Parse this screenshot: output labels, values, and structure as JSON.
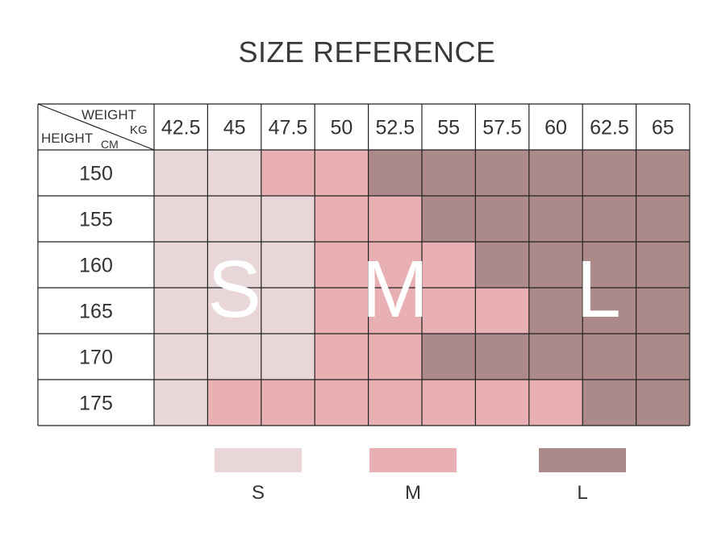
{
  "title": "SIZE REFERENCE",
  "colors": {
    "S": "#e8d6d8",
    "M": "#e8b0b2",
    "L": "#ad8a8a",
    "border": "#222222"
  },
  "chart_data": {
    "type": "table",
    "title": "SIZE REFERENCE",
    "corner": {
      "weight_label": "WEIGHT",
      "weight_unit": "KG",
      "height_label": "HEIGHT",
      "height_unit": "CM"
    },
    "weights": [
      "42.5",
      "45",
      "47.5",
      "50",
      "52.5",
      "55",
      "57.5",
      "60",
      "62.5",
      "65"
    ],
    "heights": [
      "150",
      "155",
      "160",
      "165",
      "170",
      "175"
    ],
    "cells": [
      [
        "S",
        "S",
        "M",
        "M",
        "L",
        "L",
        "L",
        "L",
        "L",
        "L"
      ],
      [
        "S",
        "S",
        "S",
        "M",
        "M",
        "L",
        "L",
        "L",
        "L",
        "L"
      ],
      [
        "S",
        "S",
        "S",
        "M",
        "M",
        "M",
        "L",
        "L",
        "L",
        "L"
      ],
      [
        "S",
        "S",
        "S",
        "M",
        "M",
        "M",
        "M",
        "L",
        "L",
        "L"
      ],
      [
        "S",
        "S",
        "S",
        "M",
        "M",
        "L",
        "L",
        "L",
        "L",
        "L"
      ],
      [
        "S",
        "M",
        "M",
        "M",
        "M",
        "M",
        "M",
        "M",
        "L",
        "L"
      ]
    ],
    "overlay_letters": [
      "S",
      "M",
      "L"
    ],
    "legend": [
      {
        "key": "S",
        "label": "S"
      },
      {
        "key": "M",
        "label": "M"
      },
      {
        "key": "L",
        "label": "L"
      }
    ]
  }
}
